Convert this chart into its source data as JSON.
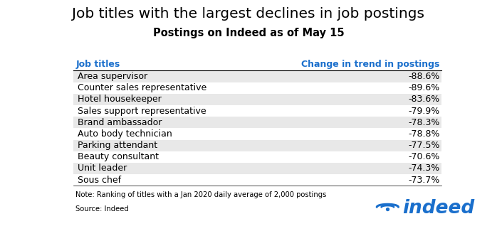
{
  "title": "Job titles with the largest declines in job postings",
  "subtitle": "Postings on Indeed as of May 15",
  "col_header_left": "Job titles",
  "col_header_right": "Change in trend in postings",
  "header_color": "#1a6fcc",
  "rows": [
    {
      "job": "Area supervisor",
      "change": "-88.6%"
    },
    {
      "job": "Counter sales representative",
      "change": "-89.6%"
    },
    {
      "job": "Hotel housekeeper",
      "change": "-83.6%"
    },
    {
      "job": "Sales support representative",
      "change": "-79.9%"
    },
    {
      "job": "Brand ambassador",
      "change": "-78.3%"
    },
    {
      "job": "Auto body technician",
      "change": "-78.8%"
    },
    {
      "job": "Parking attendant",
      "change": "-77.5%"
    },
    {
      "job": "Beauty consultant",
      "change": "-70.6%"
    },
    {
      "job": "Unit leader",
      "change": "-74.3%"
    },
    {
      "job": "Sous chef",
      "change": "-73.7%"
    }
  ],
  "row_bg_odd": "#e8e8e8",
  "row_bg_even": "#ffffff",
  "note": "Note: Ranking of titles with a Jan 2020 daily average of 2,000 postings",
  "source": "Source: Indeed",
  "indeed_color": "#1a6fcc",
  "title_fontsize": 14.5,
  "subtitle_fontsize": 10.5,
  "row_fontsize": 9.0,
  "header_fontsize": 9.0
}
